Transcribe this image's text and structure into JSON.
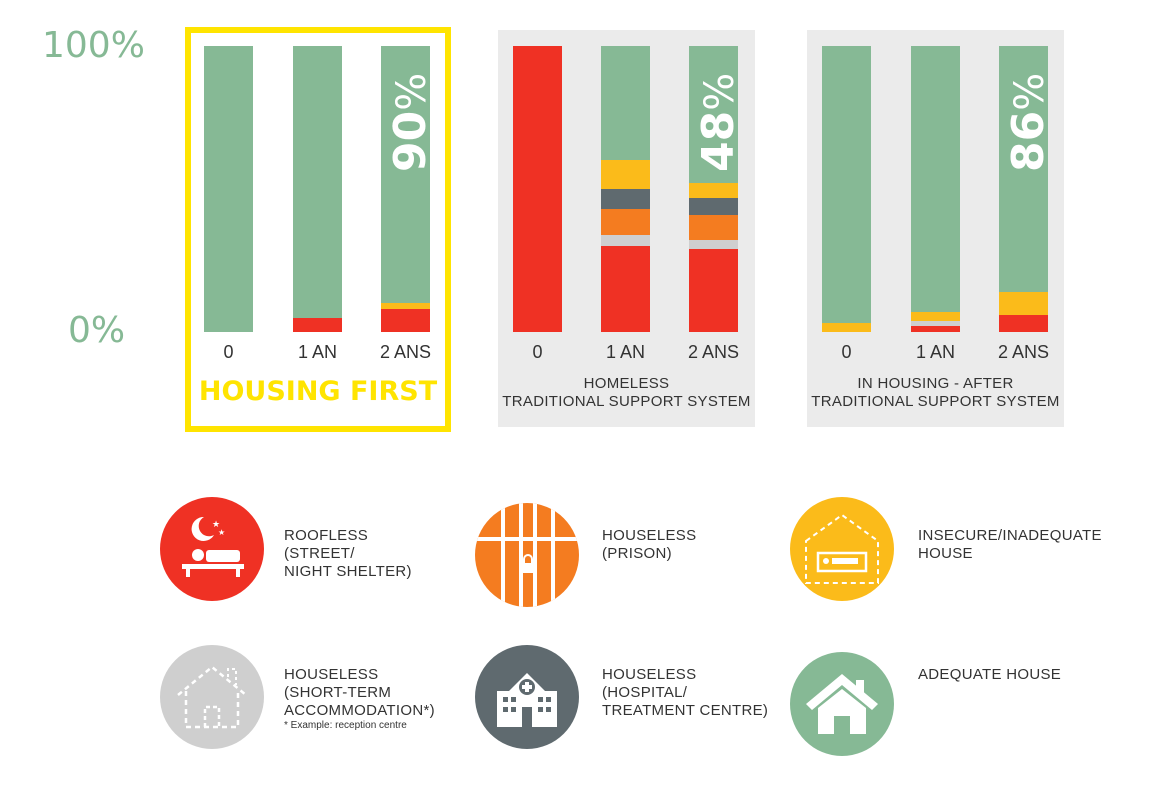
{
  "axis": {
    "top_label": "100%",
    "bottom_label": "0%"
  },
  "colors": {
    "roofless": "#ef3124",
    "prison": "#f47c20",
    "insecure": "#fbbb1a",
    "short_term": "#cfcfcf",
    "hospital": "#5f6a6f",
    "adequate": "#86b995",
    "highlight": "#ffe400",
    "panel_bg": "#ebebeb"
  },
  "chart_data": [
    {
      "type": "bar",
      "stacked": true,
      "title": "HOUSING FIRST",
      "categories": [
        "0",
        "1 AN",
        "2 ANS"
      ],
      "ylim": [
        0,
        100
      ],
      "highlight_value": "90",
      "series": [
        {
          "name": "ROOFLESS (STREET/ NIGHT SHELTER)",
          "values": [
            0,
            5,
            8
          ]
        },
        {
          "name": "HOUSELESS (SHORT-TERM ACCOMMODATION*)",
          "values": [
            0,
            0,
            0
          ]
        },
        {
          "name": "HOUSELESS (PRISON)",
          "values": [
            0,
            0,
            0
          ]
        },
        {
          "name": "HOUSELESS (HOSPITAL/ TREATMENT CENTRE)",
          "values": [
            0,
            0,
            0
          ]
        },
        {
          "name": "INSECURE/INADEQUATE HOUSE",
          "values": [
            0,
            0,
            2
          ]
        },
        {
          "name": "ADEQUATE HOUSE",
          "values": [
            100,
            95,
            90
          ]
        }
      ]
    },
    {
      "type": "bar",
      "stacked": true,
      "title": "HOMELESS TRADITIONAL SUPPORT SYSTEM",
      "categories": [
        "0",
        "1 AN",
        "2 ANS"
      ],
      "ylim": [
        0,
        100
      ],
      "highlight_value": "48",
      "series": [
        {
          "name": "ROOFLESS (STREET/ NIGHT SHELTER)",
          "values": [
            100,
            30,
            29
          ]
        },
        {
          "name": "HOUSELESS (SHORT-TERM ACCOMMODATION*)",
          "values": [
            0,
            4,
            3
          ]
        },
        {
          "name": "HOUSELESS (PRISON)",
          "values": [
            0,
            9,
            9
          ]
        },
        {
          "name": "HOUSELESS (HOSPITAL/ TREATMENT CENTRE)",
          "values": [
            0,
            7,
            6
          ]
        },
        {
          "name": "INSECURE/INADEQUATE HOUSE",
          "values": [
            0,
            10,
            5
          ]
        },
        {
          "name": "ADEQUATE HOUSE",
          "values": [
            0,
            40,
            48
          ]
        }
      ]
    },
    {
      "type": "bar",
      "stacked": true,
      "title": "IN HOUSING - AFTER TRADITIONAL SUPPORT SYSTEM",
      "categories": [
        "0",
        "1 AN",
        "2 ANS"
      ],
      "ylim": [
        0,
        100
      ],
      "highlight_value": "86",
      "series": [
        {
          "name": "ROOFLESS (STREET/ NIGHT SHELTER)",
          "values": [
            0,
            2,
            6
          ]
        },
        {
          "name": "HOUSELESS (SHORT-TERM ACCOMMODATION*)",
          "values": [
            0,
            2,
            0
          ]
        },
        {
          "name": "HOUSELESS (PRISON)",
          "values": [
            0,
            0,
            0
          ]
        },
        {
          "name": "HOUSELESS (HOSPITAL/ TREATMENT CENTRE)",
          "values": [
            0,
            0,
            0
          ]
        },
        {
          "name": "INSECURE/INADEQUATE HOUSE",
          "values": [
            3,
            3,
            8
          ]
        },
        {
          "name": "ADEQUATE HOUSE",
          "values": [
            97,
            93,
            86
          ]
        }
      ]
    }
  ],
  "panels": {
    "hf": {
      "title": "HOUSING FIRST"
    },
    "homeless": {
      "title_line1": "HOMELESS",
      "title_line2": "TRADITIONAL SUPPORT SYSTEM"
    },
    "inhousing": {
      "title_line1": "IN HOUSING - AFTER",
      "title_line2": "TRADITIONAL SUPPORT SYSTEM"
    }
  },
  "legend": {
    "roofless": {
      "line1": "ROOFLESS",
      "line2": "(STREET/",
      "line3": "NIGHT SHELTER)",
      "icon": "sleeping-person-icon"
    },
    "prison": {
      "line1": "HOUSELESS",
      "line2": "(PRISON)",
      "icon": "prison-bars-icon"
    },
    "insecure": {
      "line1": "INSECURE/INADEQUATE",
      "line2": "HOUSE",
      "icon": "insecure-house-icon"
    },
    "short_term": {
      "line1": "HOUSELESS",
      "line2": "(SHORT-TERM",
      "line3": "ACCOMMODATION*)",
      "note": "* Example: reception centre",
      "icon": "dashed-house-icon"
    },
    "hospital": {
      "line1": "HOUSELESS",
      "line2": "(HOSPITAL/",
      "line3": "TREATMENT CENTRE)",
      "icon": "hospital-icon"
    },
    "adequate": {
      "line1": "ADEQUATE HOUSE",
      "icon": "house-icon"
    }
  }
}
